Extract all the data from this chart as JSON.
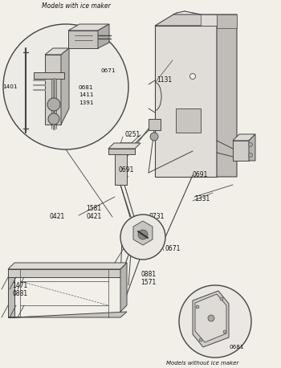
{
  "background_color": "#f2efe9",
  "line_color": "#444444",
  "text_color": "#111111",
  "figsize": [
    3.5,
    4.58
  ],
  "dpi": 100,
  "top_caption": "Models with ice maker",
  "bot_caption": "Models without ice maker"
}
